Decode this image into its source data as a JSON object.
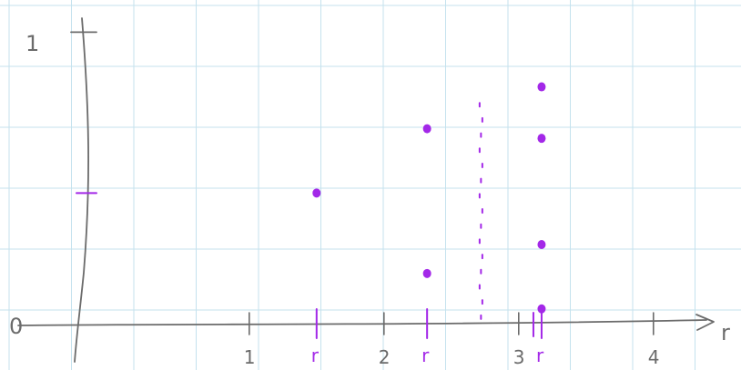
{
  "page": {
    "background": "#ffffff"
  },
  "colors": {
    "grid": "#c4e2ee",
    "ink": "#6b6b6b",
    "accent": "#a328e8"
  },
  "y_axis": {
    "labels": [
      "0",
      "1"
    ]
  },
  "x_axis": {
    "axis_label": "r",
    "number_labels": [
      "1",
      "2",
      "3",
      "4"
    ],
    "r_marks": [
      "r",
      "r",
      "r"
    ]
  },
  "chart_data": {
    "type": "scatter",
    "xlabel": "r",
    "ylabel": "",
    "xlim": [
      -0.85,
      4.65
    ],
    "ylim": [
      -0.05,
      1.1
    ],
    "x_ticks": [
      1,
      2,
      3,
      4
    ],
    "y_ticks": [
      0,
      1
    ],
    "y_tick_half": 0.5,
    "r_marks_x": [
      1.5,
      2.32,
      3.17
    ],
    "series": [
      {
        "points": [
          {
            "x": 1.5,
            "y": 0.5
          },
          {
            "x": 2.32,
            "y": 0.7
          },
          {
            "x": 2.32,
            "y": 0.25
          },
          {
            "x": 3.17,
            "y": 0.83
          },
          {
            "x": 3.17,
            "y": 0.67
          },
          {
            "x": 3.17,
            "y": 0.34
          },
          {
            "x": 3.17,
            "y": 0.14
          }
        ]
      }
    ],
    "bifurcation_band_x": 2.72,
    "bifurcation_band_y": [
      0.12,
      0.78
    ]
  }
}
